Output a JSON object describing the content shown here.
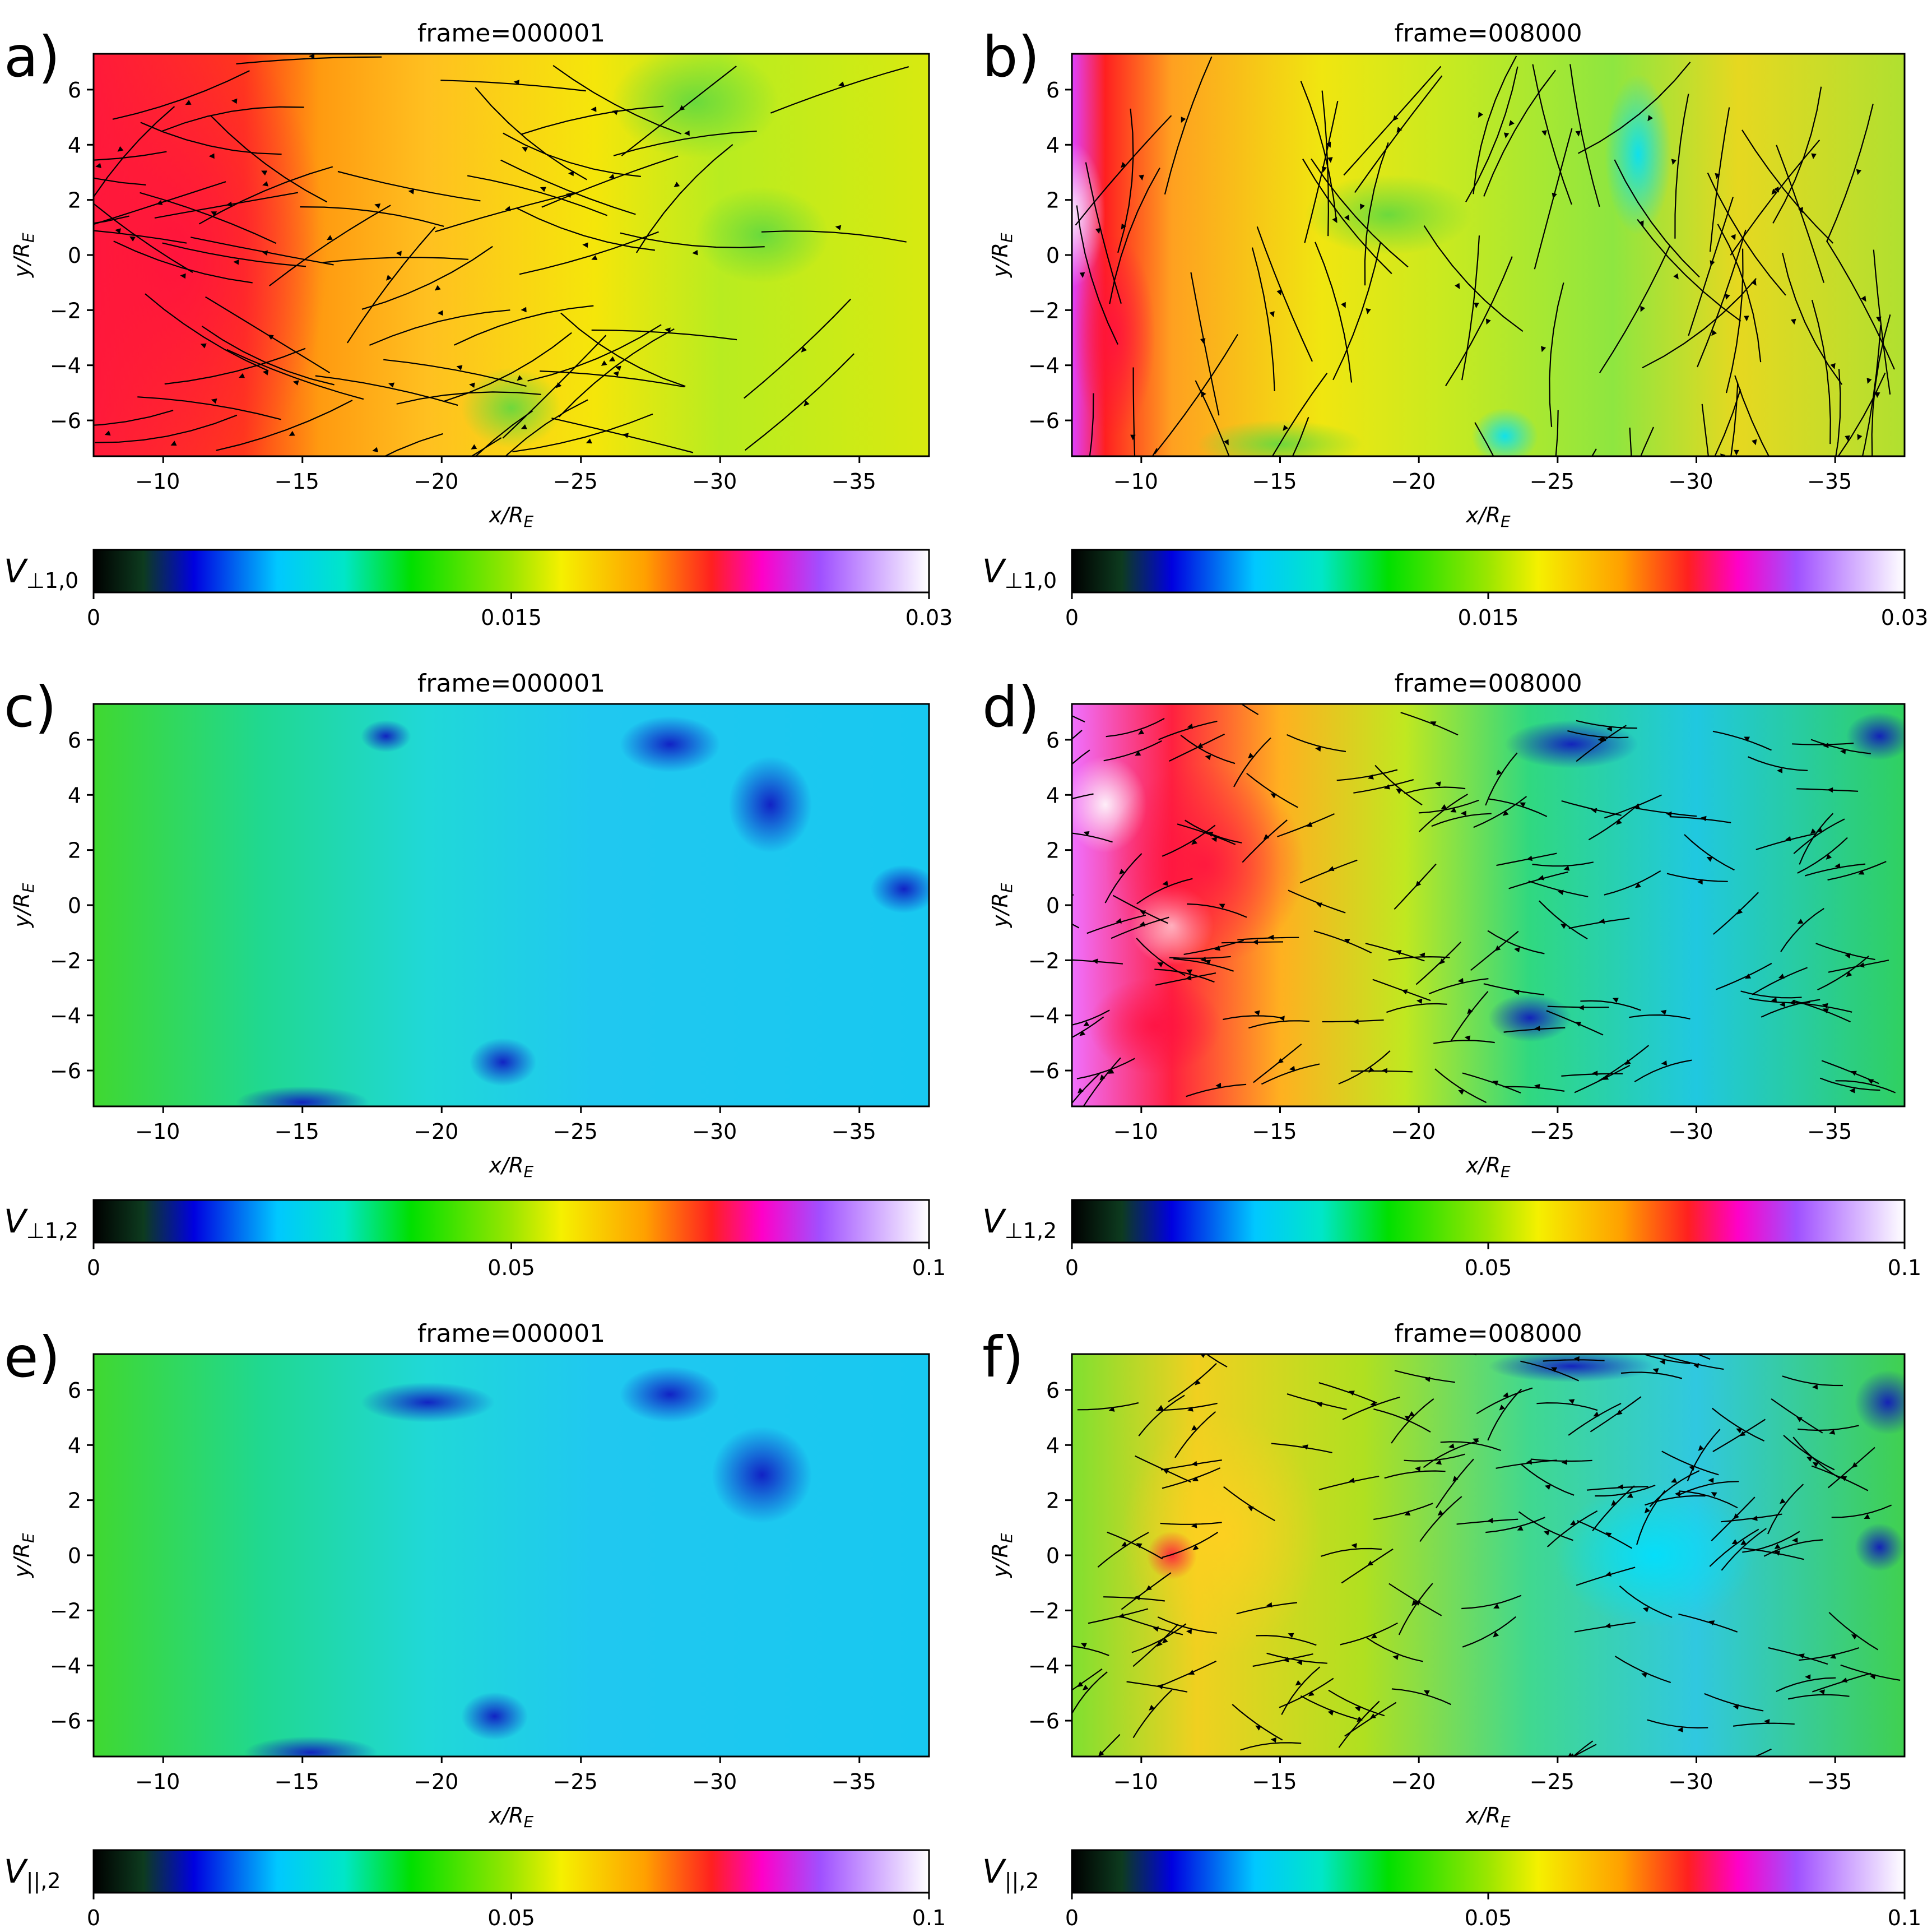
{
  "chart_data": [
    {
      "panel_label": "a)",
      "type": "heatmap",
      "title": "frame=000001",
      "xlabel": "x/R",
      "xlabel_sub": "E",
      "ylabel": "y/R",
      "ylabel_sub": "E",
      "xlim": [
        -7.5,
        -37.5
      ],
      "ylim": [
        -7.3,
        7.3
      ],
      "xticks": [
        -10,
        -15,
        -20,
        -25,
        -30,
        -35
      ],
      "yticks": [
        -6,
        -4,
        -2,
        0,
        2,
        4,
        6
      ],
      "colorbar": {
        "label_main": "V",
        "label_sub": "⊥1,0",
        "min": 0,
        "max": 0.03,
        "ticks": [
          "0",
          "0.015",
          "0.03"
        ]
      },
      "streamlines": true
    },
    {
      "panel_label": "b)",
      "type": "heatmap",
      "title": "frame=008000",
      "xlabel": "x/R",
      "xlabel_sub": "E",
      "ylabel": "y/R",
      "ylabel_sub": "E",
      "xlim": [
        -7.5,
        -37.5
      ],
      "ylim": [
        -7.3,
        7.3
      ],
      "xticks": [
        -10,
        -15,
        -20,
        -25,
        -30,
        -35
      ],
      "yticks": [
        -6,
        -4,
        -2,
        0,
        2,
        4,
        6
      ],
      "colorbar": {
        "label_main": "V",
        "label_sub": "⊥1,0",
        "min": 0,
        "max": 0.03,
        "ticks": [
          "0",
          "0.015",
          "0.03"
        ]
      },
      "streamlines": true
    },
    {
      "panel_label": "c)",
      "type": "heatmap",
      "title": "frame=000001",
      "xlabel": "x/R",
      "xlabel_sub": "E",
      "ylabel": "y/R",
      "ylabel_sub": "E",
      "xlim": [
        -7.5,
        -37.5
      ],
      "ylim": [
        -7.3,
        7.3
      ],
      "xticks": [
        -10,
        -15,
        -20,
        -25,
        -30,
        -35
      ],
      "yticks": [
        -6,
        -4,
        -2,
        0,
        2,
        4,
        6
      ],
      "colorbar": {
        "label_main": "V",
        "label_sub": "⊥1,2",
        "min": 0,
        "max": 0.1,
        "ticks": [
          "0",
          "0.05",
          "0.1"
        ]
      },
      "streamlines": false
    },
    {
      "panel_label": "d)",
      "type": "heatmap",
      "title": "frame=008000",
      "xlabel": "x/R",
      "xlabel_sub": "E",
      "ylabel": "y/R",
      "ylabel_sub": "E",
      "xlim": [
        -7.5,
        -37.5
      ],
      "ylim": [
        -7.3,
        7.3
      ],
      "xticks": [
        -10,
        -15,
        -20,
        -25,
        -30,
        -35
      ],
      "yticks": [
        -6,
        -4,
        -2,
        0,
        2,
        4,
        6
      ],
      "colorbar": {
        "label_main": "V",
        "label_sub": "⊥1,2",
        "min": 0,
        "max": 0.1,
        "ticks": [
          "0",
          "0.05",
          "0.1"
        ]
      },
      "streamlines": true
    },
    {
      "panel_label": "e)",
      "type": "heatmap",
      "title": "frame=000001",
      "xlabel": "x/R",
      "xlabel_sub": "E",
      "ylabel": "y/R",
      "ylabel_sub": "E",
      "xlim": [
        -7.5,
        -37.5
      ],
      "ylim": [
        -7.3,
        7.3
      ],
      "xticks": [
        -10,
        -15,
        -20,
        -25,
        -30,
        -35
      ],
      "yticks": [
        -6,
        -4,
        -2,
        0,
        2,
        4,
        6
      ],
      "colorbar": {
        "label_main": "V",
        "label_sub": "||,2",
        "min": 0,
        "max": 0.1,
        "ticks": [
          "0",
          "0.05",
          "0.1"
        ]
      },
      "streamlines": false
    },
    {
      "panel_label": "f)",
      "type": "heatmap",
      "title": "frame=008000",
      "xlabel": "x/R",
      "xlabel_sub": "E",
      "ylabel": "y/R",
      "ylabel_sub": "E",
      "xlim": [
        -7.5,
        -37.5
      ],
      "ylim": [
        -7.3,
        7.3
      ],
      "xticks": [
        -10,
        -15,
        -20,
        -25,
        -30,
        -35
      ],
      "yticks": [
        -6,
        -4,
        -2,
        0,
        2,
        4,
        6
      ],
      "colorbar": {
        "label_main": "V",
        "label_sub": "||,2",
        "min": 0,
        "max": 0.1,
        "ticks": [
          "0",
          "0.05",
          "0.1"
        ]
      },
      "streamlines": true
    }
  ],
  "colormap": [
    "#000000",
    "#0d3b1f",
    "#0000e0",
    "#00c8ff",
    "#00e6c8",
    "#00e000",
    "#9be600",
    "#f5f000",
    "#ffa000",
    "#ff2020",
    "#ff00c8",
    "#a050ff",
    "#ffffff"
  ],
  "streamline_color": "#000000"
}
